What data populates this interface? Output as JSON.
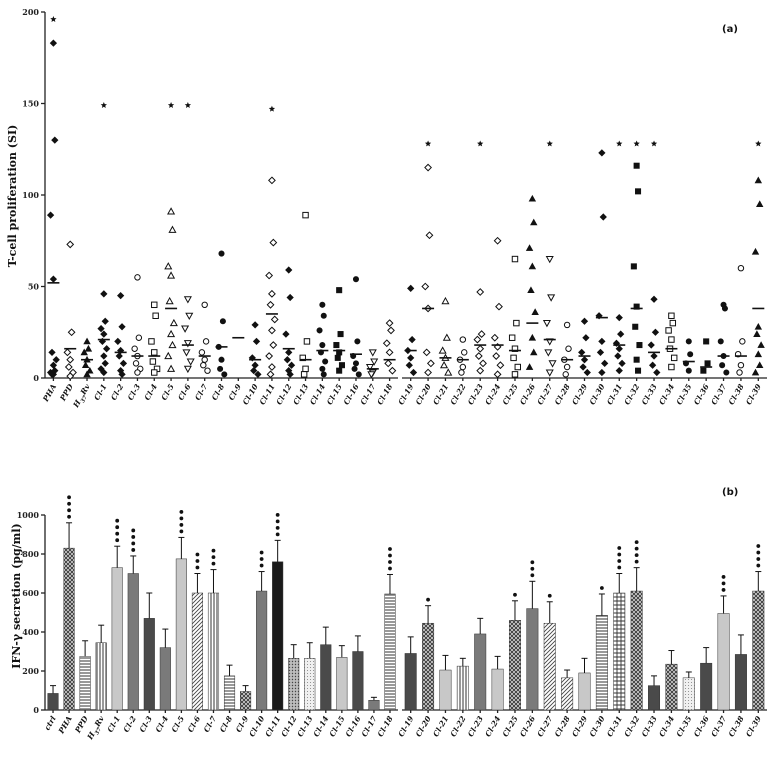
{
  "chart_data": [
    {
      "type": "scatter",
      "panel_label": "(a)",
      "ylabel": "T-cell proliferation (SI)",
      "ylim": [
        0,
        200
      ],
      "yticks": [
        0,
        50,
        100,
        150,
        200
      ],
      "grid": false,
      "categories": [
        "PHA",
        "PPD",
        "H37Rv",
        "Cl-1",
        "Cl-2",
        "Cl-3",
        "Cl-4",
        "Cl-5",
        "Cl-6",
        "Cl-7",
        "Cl-8",
        "Cl-9",
        "Cl-10",
        "Cl-11",
        "Cl-12",
        "Cl-13",
        "Cl-14",
        "Cl-15",
        "Cl-16",
        "Cl-17",
        "Cl-18",
        "Cl-19",
        "Cl-20",
        "Cl-21",
        "Cl-22",
        "Cl-23",
        "Cl-24",
        "Cl-25",
        "Cl-26",
        "Cl-27",
        "Cl-28",
        "Cl-29",
        "Cl-30",
        "Cl-31",
        "Cl-32",
        "Cl-33",
        "Cl-34",
        "Cl-35",
        "Cl-36",
        "Cl-37",
        "Cl-38",
        "Cl-39"
      ],
      "groups": [
        {
          "marker": "diamond",
          "median": 52,
          "points": [
            183,
            130,
            89,
            54,
            14,
            10,
            7,
            4,
            3,
            2,
            2
          ],
          "star": 196
        },
        {
          "marker": "diamond-open",
          "median": 16,
          "points": [
            73,
            25,
            14,
            10,
            6,
            3,
            1
          ]
        },
        {
          "marker": "triangle",
          "median": 10,
          "points": [
            20,
            16,
            14,
            10,
            7,
            4,
            2
          ]
        },
        {
          "marker": "diamond",
          "median": 21,
          "points": [
            46,
            31,
            27,
            24,
            20,
            16,
            12,
            8,
            5,
            3
          ],
          "star": 149
        },
        {
          "marker": "diamond",
          "median": 14,
          "points": [
            45,
            28,
            20,
            15,
            12,
            8,
            4,
            2
          ]
        },
        {
          "marker": "circle-open",
          "median": 12,
          "points": [
            55,
            22,
            16,
            12,
            8,
            5,
            3
          ]
        },
        {
          "marker": "square-open",
          "median": 12,
          "points": [
            40,
            34,
            20,
            14,
            9,
            5,
            3
          ]
        },
        {
          "marker": "triangle-open",
          "median": 38,
          "points": [
            91,
            81,
            61,
            56,
            42,
            30,
            24,
            18,
            12,
            5
          ],
          "star": 149
        },
        {
          "marker": "triangle-down-open",
          "median": 18,
          "points": [
            43,
            34,
            27,
            19,
            14,
            9,
            5
          ],
          "star": 149
        },
        {
          "marker": "circle-open",
          "median": 12,
          "points": [
            40,
            20,
            14,
            10,
            7,
            4
          ]
        },
        {
          "marker": "circle",
          "median": 17,
          "points": [
            68,
            31,
            17,
            10,
            5,
            2
          ]
        },
        {
          "marker": "diamond",
          "median": 22,
          "points": []
        },
        {
          "marker": "diamond",
          "median": 10,
          "points": [
            29,
            20,
            11,
            7,
            4,
            2
          ]
        },
        {
          "marker": "diamond-open",
          "median": 35,
          "points": [
            108,
            74,
            56,
            46,
            40,
            32,
            26,
            18,
            12,
            6,
            2
          ],
          "star": 147
        },
        {
          "marker": "diamond",
          "median": 16,
          "points": [
            59,
            44,
            24,
            14,
            10,
            7,
            4,
            2
          ]
        },
        {
          "marker": "square-open",
          "median": 10,
          "points": [
            89,
            20,
            11,
            5,
            2
          ]
        },
        {
          "marker": "circle",
          "median": 15,
          "points": [
            40,
            34,
            26,
            18,
            14,
            9,
            5,
            2
          ]
        },
        {
          "marker": "square",
          "median": 15,
          "points": [
            48,
            24,
            18,
            14,
            11,
            7,
            4
          ]
        },
        {
          "marker": "circle",
          "median": 13,
          "points": [
            54,
            20,
            12,
            8,
            5,
            2
          ]
        },
        {
          "marker": "triangle-down-open",
          "median": 5,
          "points": [
            14,
            9,
            6,
            3,
            2
          ]
        },
        {
          "marker": "diamond-open",
          "median": 10,
          "points": [
            30,
            26,
            19,
            14,
            8,
            4
          ]
        },
        {
          "marker": "diamond",
          "median": 15,
          "points": [
            49,
            21,
            15,
            11,
            7,
            3
          ]
        },
        {
          "marker": "diamond-open",
          "median": 38,
          "points": [
            115,
            78,
            50,
            38,
            14,
            8,
            3
          ],
          "star": 128
        },
        {
          "marker": "triangle-open",
          "median": 11,
          "points": [
            42,
            22,
            15,
            11,
            7,
            3
          ]
        },
        {
          "marker": "circle-open",
          "median": 10,
          "points": [
            21,
            14,
            10,
            6,
            3
          ]
        },
        {
          "marker": "diamond-open",
          "median": 18,
          "points": [
            47,
            24,
            21,
            16,
            12,
            8,
            4
          ],
          "star": 128
        },
        {
          "marker": "diamond-open",
          "median": 18,
          "points": [
            75,
            39,
            22,
            17,
            12,
            7,
            2
          ]
        },
        {
          "marker": "square-open",
          "median": 15,
          "points": [
            65,
            30,
            22,
            16,
            11,
            6,
            2
          ]
        },
        {
          "marker": "triangle",
          "median": 30,
          "points": [
            98,
            85,
            71,
            61,
            48,
            36,
            22,
            14,
            6
          ]
        },
        {
          "marker": "triangle-down-open",
          "median": 21,
          "points": [
            65,
            44,
            30,
            20,
            14,
            8,
            3
          ],
          "star": 128
        },
        {
          "marker": "circle-open",
          "median": 10,
          "points": [
            29,
            16,
            10,
            6,
            2
          ]
        },
        {
          "marker": "diamond",
          "median": 12,
          "points": [
            31,
            22,
            14,
            10,
            6,
            3
          ]
        },
        {
          "marker": "diamond",
          "median": 33,
          "points": [
            123,
            88,
            34,
            20,
            14,
            8,
            3
          ]
        },
        {
          "marker": "diamond",
          "median": 18,
          "points": [
            33,
            24,
            19,
            16,
            12,
            8,
            4
          ],
          "star": 128
        },
        {
          "marker": "square",
          "median": 38,
          "points": [
            116,
            102,
            61,
            39,
            28,
            18,
            10,
            4
          ],
          "star": 128
        },
        {
          "marker": "diamond",
          "median": 14,
          "points": [
            43,
            25,
            18,
            12,
            7,
            3
          ],
          "star": 128
        },
        {
          "marker": "square-open",
          "median": 16,
          "points": [
            34,
            30,
            26,
            21,
            16,
            11,
            6
          ]
        },
        {
          "marker": "circle",
          "median": 9,
          "points": [
            20,
            13,
            8,
            4
          ]
        },
        {
          "marker": "square",
          "median": 6,
          "points": [
            20,
            8,
            4
          ]
        },
        {
          "marker": "circle",
          "median": 12,
          "points": [
            40,
            38,
            20,
            12,
            7,
            3
          ]
        },
        {
          "marker": "circle-open",
          "median": 12,
          "points": [
            60,
            20,
            13,
            7,
            3
          ]
        },
        {
          "marker": "triangle",
          "median": 38,
          "points": [
            108,
            95,
            69,
            28,
            24,
            18,
            13,
            7,
            3
          ],
          "star": 128
        }
      ]
    },
    {
      "type": "bar",
      "panel_label": "(b)",
      "ylabel": "IFN-γ secretion (pg/ml)",
      "ylim": [
        0,
        1000
      ],
      "yticks": [
        0,
        200,
        400,
        600,
        800,
        1000
      ],
      "grid": false,
      "categories": [
        "ctrl",
        "PHA",
        "PPD",
        "H37Rv",
        "Cl-1",
        "Cl-2",
        "Cl-3",
        "Cl-4",
        "Cl-5",
        "Cl-6",
        "Cl-7",
        "Cl-8",
        "Cl-9",
        "Cl-10",
        "Cl-11",
        "Cl-12",
        "Cl-13",
        "Cl-14",
        "Cl-15",
        "Cl-16",
        "Cl-17",
        "Cl-18",
        "Cl-19",
        "Cl-20",
        "Cl-21",
        "Cl-22",
        "Cl-23",
        "Cl-24",
        "Cl-25",
        "Cl-26",
        "Cl-27",
        "Cl-28",
        "Cl-29",
        "Cl-30",
        "Cl-31",
        "Cl-32",
        "Cl-33",
        "Cl-34",
        "Cl-35",
        "Cl-36",
        "Cl-37",
        "Cl-38",
        "Cl-39"
      ],
      "values": [
        85,
        830,
        275,
        345,
        730,
        700,
        470,
        320,
        775,
        600,
        600,
        175,
        95,
        610,
        760,
        265,
        265,
        335,
        270,
        300,
        50,
        595,
        290,
        445,
        205,
        225,
        390,
        210,
        460,
        520,
        445,
        165,
        190,
        485,
        600,
        610,
        125,
        235,
        165,
        240,
        495,
        285,
        610
      ],
      "errors": [
        40,
        130,
        80,
        90,
        110,
        90,
        130,
        95,
        110,
        100,
        120,
        55,
        30,
        100,
        110,
        70,
        80,
        90,
        60,
        80,
        15,
        100,
        85,
        90,
        75,
        40,
        80,
        65,
        100,
        140,
        110,
        40,
        75,
        110,
        100,
        120,
        50,
        70,
        30,
        80,
        90,
        100,
        100
      ],
      "significance_dots": [
        0,
        4,
        0,
        0,
        4,
        4,
        0,
        0,
        4,
        3,
        3,
        0,
        0,
        3,
        4,
        0,
        0,
        0,
        0,
        0,
        0,
        4,
        0,
        1,
        0,
        0,
        0,
        0,
        1,
        3,
        1,
        0,
        0,
        1,
        4,
        4,
        0,
        0,
        0,
        0,
        3,
        0,
        4
      ],
      "patterns": [
        "solid-dark",
        "cross",
        "hlines",
        "vlines",
        "light",
        "solid-mid",
        "solid-dark",
        "solid-mid",
        "light",
        "diag",
        "vlines",
        "hlines",
        "cross",
        "solid-mid",
        "solid-black",
        "dots",
        "dots-light",
        "solid-dark",
        "light",
        "solid-dark",
        "solid-mid",
        "hlines",
        "solid-dark",
        "cross",
        "light",
        "vlines",
        "solid-mid",
        "light",
        "cross",
        "solid-mid",
        "diag",
        "diag",
        "light",
        "hlines",
        "grid",
        "cross",
        "solid-dark",
        "cross",
        "dots-light",
        "solid-dark",
        "light",
        "solid-dark",
        "cross"
      ]
    }
  ]
}
